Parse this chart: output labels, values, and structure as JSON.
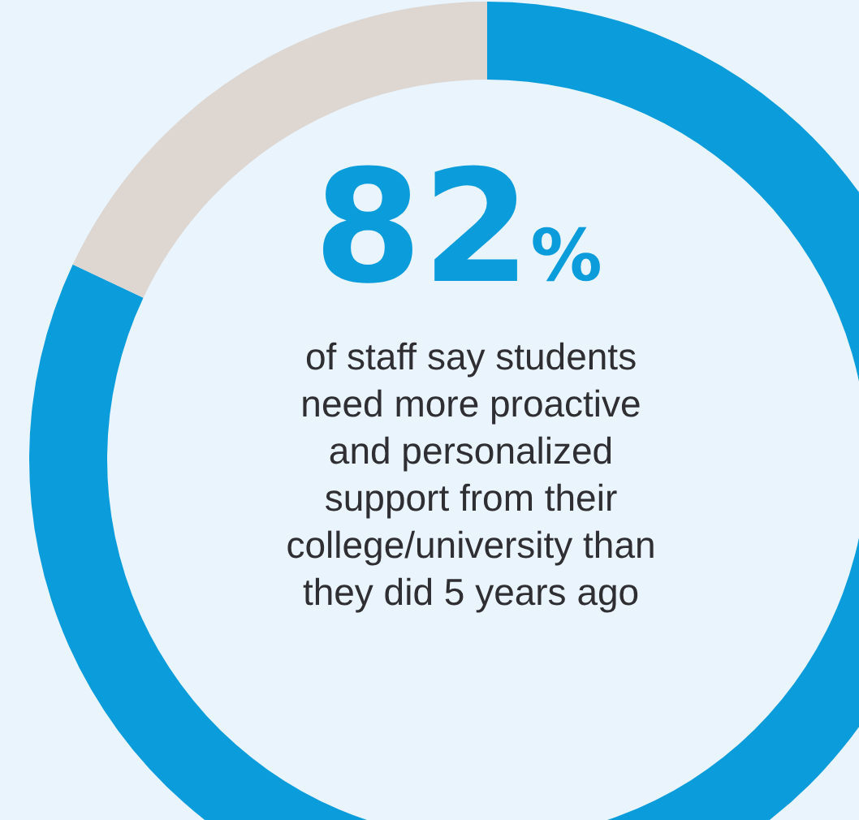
{
  "chart_data": {
    "type": "donut",
    "categories": [
      null,
      null
    ],
    "values": [
      82,
      18
    ],
    "colors": [
      "#0b9ddb",
      "#ddd6d1"
    ],
    "value_labels": [
      "82%",
      null
    ],
    "annotations": [
      "of staff say students\nneed more proactive\nand personalized\nsupport from their\ncollege/university than\nthey did 5 years ago"
    ]
  }
}
